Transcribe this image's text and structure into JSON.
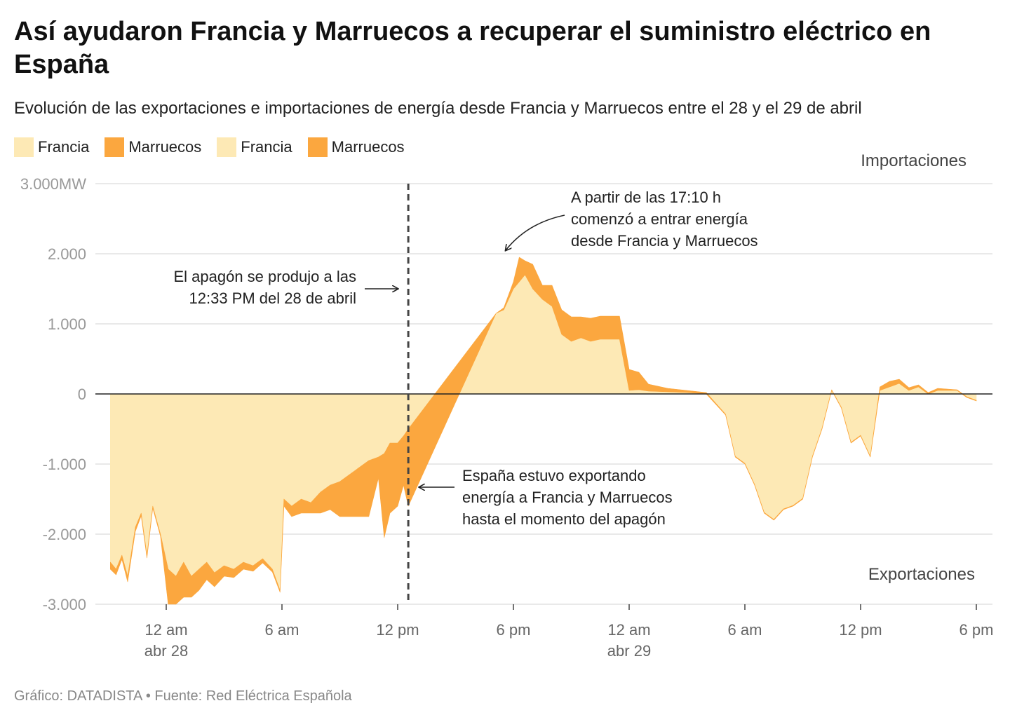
{
  "title": "Así ayudaron Francia y Marruecos a recuperar el suministro eléctrico en España",
  "subtitle": "Evolución de las exportaciones e importaciones de energía desde Francia y Marruecos entre el 28 y el 29 de abril",
  "footer": "Gráfico: DATADISTA • Fuente: Red Eléctrica Española",
  "colors": {
    "francia": "#FDE9B5",
    "marruecos": "#FBA73F",
    "grid": "#e2e2e2",
    "axis": "#222222",
    "tick": "#999999"
  },
  "legend": [
    {
      "label": "Francia",
      "color": "#FDE9B5"
    },
    {
      "label": "Marruecos",
      "color": "#FBA73F"
    },
    {
      "label": "Francia",
      "color": "#FDE9B5"
    },
    {
      "label": "Marruecos",
      "color": "#FBA73F"
    }
  ],
  "chart_data": {
    "type": "area",
    "stacked": true,
    "ylabel_unit": "MW",
    "ylim": [
      -3000,
      3000
    ],
    "xlim_hours": [
      -3,
      42.5
    ],
    "y_ticks": [
      {
        "value": 3000,
        "label": "3.000MW"
      },
      {
        "value": 2000,
        "label": "2.000"
      },
      {
        "value": 1000,
        "label": "1.000"
      },
      {
        "value": 0,
        "label": "0"
      },
      {
        "value": -1000,
        "label": "-1.000"
      },
      {
        "value": -2000,
        "label": "-2.000"
      },
      {
        "value": -3000,
        "label": "-3.000"
      }
    ],
    "x_ticks": [
      {
        "hour": 0,
        "label": "12 am",
        "sublabel": "abr 28"
      },
      {
        "hour": 6,
        "label": "6 am",
        "sublabel": ""
      },
      {
        "hour": 12,
        "label": "12 pm",
        "sublabel": ""
      },
      {
        "hour": 18,
        "label": "6 pm",
        "sublabel": ""
      },
      {
        "hour": 24,
        "label": "12 am",
        "sublabel": "abr 29"
      },
      {
        "hour": 30,
        "label": "6 am",
        "sublabel": ""
      },
      {
        "hour": 36,
        "label": "12 pm",
        "sublabel": ""
      },
      {
        "hour": 42,
        "label": "6 pm",
        "sublabel": ""
      }
    ],
    "region_labels": {
      "top": "Importaciones",
      "bottom": "Exportaciones"
    },
    "blackout_hour": 12.55,
    "series": [
      {
        "name": "Francia",
        "x": [
          -2.9,
          -2.6,
          -2.3,
          -2,
          -1.6,
          -1.3,
          -1,
          -0.7,
          -0.3,
          0.1,
          0.5,
          0.9,
          1.3,
          1.7,
          2.1,
          2.5,
          3,
          3.5,
          4,
          4.5,
          5,
          5.5,
          5.9,
          6.1,
          6.5,
          7,
          7.5,
          8,
          8.5,
          9,
          9.5,
          10,
          10.5,
          11,
          11.3,
          11.6,
          12,
          12.3,
          12.55,
          17.1,
          17.5,
          18,
          18.3,
          18.6,
          19,
          19.5,
          20,
          20.5,
          21,
          21.5,
          22,
          22.5,
          23,
          23.5,
          24,
          24.5,
          25,
          26,
          27,
          28,
          29,
          29.5,
          30,
          30.5,
          31,
          31.5,
          32,
          32.5,
          33,
          33.5,
          34,
          34.5,
          35,
          35.5,
          36,
          36.5,
          37,
          37.5,
          38,
          38.5,
          39,
          39.5,
          40,
          40.5,
          41,
          41.5,
          42
        ],
        "values": [
          -2400,
          -2500,
          -2300,
          -2600,
          -1900,
          -1700,
          -2300,
          -1600,
          -2000,
          -2500,
          -2600,
          -2400,
          -2600,
          -2500,
          -2400,
          -2550,
          -2450,
          -2500,
          -2400,
          -2450,
          -2350,
          -2500,
          -2800,
          -1500,
          -1600,
          -1500,
          -1550,
          -1400,
          -1300,
          -1250,
          -1150,
          -1050,
          -950,
          -900,
          -850,
          -700,
          -700,
          -600,
          -500,
          1150,
          1200,
          1500,
          1600,
          1700,
          1500,
          1350,
          1250,
          850,
          750,
          800,
          750,
          780,
          780,
          780,
          50,
          60,
          40,
          30,
          20,
          0,
          -300,
          -900,
          -1000,
          -1300,
          -1700,
          -1800,
          -1650,
          -1600,
          -1500,
          -900,
          -500,
          50,
          -200,
          -700,
          -600,
          -900,
          50,
          100,
          150,
          50,
          100,
          0,
          50,
          50,
          50,
          -50,
          -100
        ]
      },
      {
        "name": "Marruecos",
        "x": [
          -2.9,
          -2.6,
          -2.3,
          -2,
          -1.6,
          -1.3,
          -1,
          -0.7,
          -0.3,
          0.1,
          0.5,
          0.9,
          1.3,
          1.7,
          2.1,
          2.5,
          3,
          3.5,
          4,
          4.5,
          5,
          5.5,
          5.9,
          6.1,
          6.5,
          7,
          7.5,
          8,
          8.5,
          9,
          9.5,
          10,
          10.5,
          11,
          11.3,
          11.6,
          12,
          12.3,
          12.55,
          17.1,
          17.5,
          18,
          18.3,
          18.6,
          19,
          19.5,
          20,
          20.5,
          21,
          21.5,
          22,
          22.5,
          23,
          23.5,
          24,
          24.5,
          25,
          26,
          27,
          28,
          29,
          29.5,
          30,
          30.5,
          31,
          31.5,
          32,
          32.5,
          33,
          33.5,
          34,
          34.5,
          35,
          35.5,
          36,
          36.5,
          37,
          37.5,
          38,
          38.5,
          39,
          39.5,
          40,
          40.5,
          41,
          41.5,
          42
        ],
        "values": [
          -100,
          -80,
          -60,
          -80,
          -60,
          -40,
          -40,
          -30,
          -30,
          -500,
          -400,
          -500,
          -300,
          -300,
          -250,
          -200,
          -150,
          -120,
          -100,
          -80,
          -60,
          -40,
          -30,
          -100,
          -150,
          -200,
          -150,
          -300,
          -350,
          -500,
          -600,
          -700,
          -800,
          -300,
          -1200,
          -1000,
          -900,
          -700,
          -1100,
          0,
          30,
          100,
          350,
          200,
          350,
          200,
          300,
          350,
          350,
          300,
          330,
          330,
          330,
          330,
          300,
          250,
          100,
          50,
          30,
          20,
          10,
          10,
          10,
          10,
          10,
          10,
          10,
          10,
          10,
          10,
          10,
          10,
          10,
          10,
          10,
          10,
          50,
          80,
          60,
          40,
          30,
          20,
          30,
          20,
          10,
          10,
          10
        ]
      }
    ],
    "annotations": [
      {
        "id": "blackout",
        "lines": [
          "El apagón se produjo a las",
          "12:33 PM del 28 de abril"
        ]
      },
      {
        "id": "import_start",
        "lines": [
          "A partir de las 17:10 h",
          "comenzó a entrar energía",
          "desde Francia y Marruecos"
        ]
      },
      {
        "id": "export_note",
        "lines": [
          "España estuvo exportando",
          "energía a Francia y Marruecos",
          "hasta el momento del apagón"
        ]
      }
    ]
  }
}
